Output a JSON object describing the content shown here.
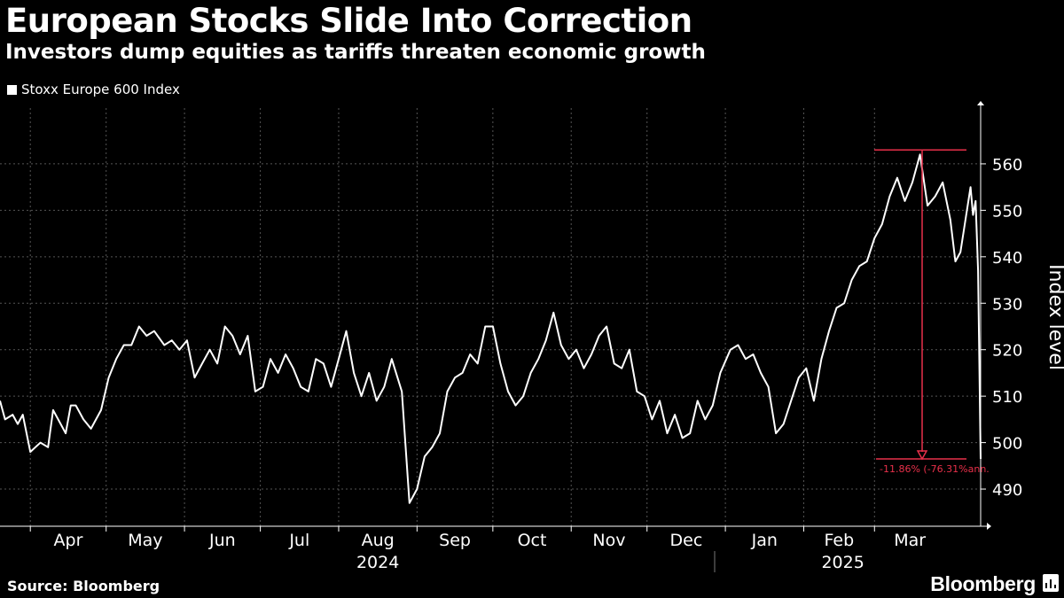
{
  "header": {
    "title": "European Stocks Slide Into Correction",
    "subtitle": "Investors dump equities as tariffs threaten economic growth",
    "legend": "Stoxx Europe 600 Index"
  },
  "footer": {
    "source": "Source: Bloomberg",
    "brand": "Bloomberg"
  },
  "colors": {
    "background": "#000000",
    "line": "#ffffff",
    "annotation": "#e8304a",
    "grid": "#555555"
  },
  "chart_data": {
    "type": "line",
    "title": "European Stocks Slide Into Correction",
    "subtitle": "Investors dump equities as tariffs threaten economic growth",
    "ylabel": "Index level",
    "xlabel": "",
    "ylim": [
      482,
      572
    ],
    "yticks": [
      490,
      500,
      510,
      520,
      530,
      540,
      550,
      560
    ],
    "y_axis_side": "right",
    "grid": true,
    "legend_position": "top-left",
    "x_ticks": [
      "Apr",
      "May",
      "Jun",
      "Jul",
      "Aug",
      "Sep",
      "Oct",
      "Nov",
      "Dec",
      "Jan",
      "Feb",
      "Mar"
    ],
    "x_tick_months": [
      "2024-04",
      "2024-05",
      "2024-06",
      "2024-07",
      "2024-08",
      "2024-09",
      "2024-10",
      "2024-11",
      "2024-12",
      "2025-01",
      "2025-02",
      "2025-03"
    ],
    "year_labels": [
      {
        "label": "2024",
        "month": "2024-08"
      },
      {
        "label": "2025",
        "month": "2025-02"
      }
    ],
    "xlim": [
      "2024-03-20",
      "2025-04-12"
    ],
    "series": [
      {
        "name": "Stoxx Europe 600 Index",
        "points": [
          [
            "2024-03-20",
            509
          ],
          [
            "2024-03-22",
            505
          ],
          [
            "2024-03-25",
            506
          ],
          [
            "2024-03-27",
            504
          ],
          [
            "2024-03-29",
            506
          ],
          [
            "2024-04-01",
            498
          ],
          [
            "2024-04-03",
            499
          ],
          [
            "2024-04-05",
            500
          ],
          [
            "2024-04-08",
            499
          ],
          [
            "2024-04-10",
            507
          ],
          [
            "2024-04-12",
            505
          ],
          [
            "2024-04-15",
            502
          ],
          [
            "2024-04-17",
            508
          ],
          [
            "2024-04-19",
            508
          ],
          [
            "2024-04-22",
            505
          ],
          [
            "2024-04-25",
            503
          ],
          [
            "2024-04-29",
            507
          ],
          [
            "2024-05-02",
            514
          ],
          [
            "2024-05-05",
            518
          ],
          [
            "2024-05-08",
            521
          ],
          [
            "2024-05-11",
            521
          ],
          [
            "2024-05-14",
            525
          ],
          [
            "2024-05-17",
            523
          ],
          [
            "2024-05-20",
            524
          ],
          [
            "2024-05-24",
            521
          ],
          [
            "2024-05-27",
            522
          ],
          [
            "2024-05-30",
            520
          ],
          [
            "2024-06-02",
            522
          ],
          [
            "2024-06-05",
            514
          ],
          [
            "2024-06-08",
            517
          ],
          [
            "2024-06-11",
            520
          ],
          [
            "2024-06-14",
            517
          ],
          [
            "2024-06-17",
            525
          ],
          [
            "2024-06-20",
            523
          ],
          [
            "2024-06-23",
            519
          ],
          [
            "2024-06-26",
            523
          ],
          [
            "2024-06-29",
            511
          ],
          [
            "2024-07-02",
            512
          ],
          [
            "2024-07-05",
            518
          ],
          [
            "2024-07-08",
            515
          ],
          [
            "2024-07-11",
            519
          ],
          [
            "2024-07-14",
            516
          ],
          [
            "2024-07-17",
            512
          ],
          [
            "2024-07-20",
            511
          ],
          [
            "2024-07-23",
            518
          ],
          [
            "2024-07-26",
            517
          ],
          [
            "2024-07-29",
            512
          ],
          [
            "2024-08-01",
            518
          ],
          [
            "2024-08-04",
            524
          ],
          [
            "2024-08-07",
            515
          ],
          [
            "2024-08-10",
            510
          ],
          [
            "2024-08-13",
            515
          ],
          [
            "2024-08-16",
            509
          ],
          [
            "2024-08-19",
            512
          ],
          [
            "2024-08-22",
            518
          ],
          [
            "2024-08-26",
            511
          ],
          [
            "2024-08-29",
            487
          ],
          [
            "2024-09-01",
            490
          ],
          [
            "2024-09-04",
            497
          ],
          [
            "2024-09-07",
            499
          ],
          [
            "2024-09-10",
            502
          ],
          [
            "2024-09-13",
            511
          ],
          [
            "2024-09-16",
            514
          ],
          [
            "2024-09-19",
            515
          ],
          [
            "2024-09-22",
            519
          ],
          [
            "2024-09-25",
            517
          ],
          [
            "2024-09-28",
            525
          ],
          [
            "2024-10-01",
            525
          ],
          [
            "2024-10-04",
            517
          ],
          [
            "2024-10-07",
            511
          ],
          [
            "2024-10-10",
            508
          ],
          [
            "2024-10-13",
            510
          ],
          [
            "2024-10-16",
            515
          ],
          [
            "2024-10-19",
            518
          ],
          [
            "2024-10-22",
            522
          ],
          [
            "2024-10-25",
            528
          ],
          [
            "2024-10-28",
            521
          ],
          [
            "2024-10-31",
            518
          ],
          [
            "2024-11-03",
            520
          ],
          [
            "2024-11-06",
            516
          ],
          [
            "2024-11-09",
            519
          ],
          [
            "2024-11-12",
            523
          ],
          [
            "2024-11-15",
            525
          ],
          [
            "2024-11-18",
            517
          ],
          [
            "2024-11-21",
            516
          ],
          [
            "2024-11-24",
            520
          ],
          [
            "2024-11-27",
            511
          ],
          [
            "2024-11-30",
            510
          ],
          [
            "2024-12-03",
            505
          ],
          [
            "2024-12-06",
            509
          ],
          [
            "2024-12-09",
            502
          ],
          [
            "2024-12-12",
            506
          ],
          [
            "2024-12-15",
            501
          ],
          [
            "2024-12-18",
            502
          ],
          [
            "2024-12-21",
            509
          ],
          [
            "2024-12-24",
            505
          ],
          [
            "2024-12-27",
            508
          ],
          [
            "2024-12-30",
            515
          ],
          [
            "2025-01-03",
            520
          ],
          [
            "2025-01-06",
            521
          ],
          [
            "2025-01-09",
            518
          ],
          [
            "2025-01-12",
            519
          ],
          [
            "2025-01-15",
            515
          ],
          [
            "2025-01-18",
            512
          ],
          [
            "2025-01-21",
            502
          ],
          [
            "2025-01-24",
            504
          ],
          [
            "2025-01-27",
            509
          ],
          [
            "2025-01-30",
            514
          ],
          [
            "2025-02-02",
            516
          ],
          [
            "2025-02-05",
            509
          ],
          [
            "2025-02-08",
            518
          ],
          [
            "2025-02-11",
            524
          ],
          [
            "2025-02-14",
            529
          ],
          [
            "2025-02-17",
            530
          ],
          [
            "2025-02-20",
            535
          ],
          [
            "2025-02-23",
            538
          ],
          [
            "2025-02-26",
            539
          ],
          [
            "2025-03-01",
            544
          ],
          [
            "2025-03-04",
            547
          ],
          [
            "2025-03-07",
            553
          ],
          [
            "2025-03-10",
            557
          ],
          [
            "2025-03-13",
            552
          ],
          [
            "2025-03-16",
            556
          ],
          [
            "2025-03-19",
            562
          ],
          [
            "2025-03-22",
            551
          ],
          [
            "2025-03-25",
            553
          ],
          [
            "2025-03-28",
            556
          ],
          [
            "2025-03-31",
            548
          ],
          [
            "2025-04-02",
            539
          ],
          [
            "2025-04-04",
            541
          ],
          [
            "2025-04-06",
            548
          ],
          [
            "2025-04-08",
            555
          ],
          [
            "2025-04-09",
            549
          ],
          [
            "2025-04-10",
            552
          ],
          [
            "2025-04-11",
            537
          ],
          [
            "2025-04-12",
            496.5
          ]
        ]
      }
    ],
    "annotation": {
      "peak": 563,
      "trough": 496.5,
      "label": "-11.86% (-76.31%ann."
    }
  }
}
